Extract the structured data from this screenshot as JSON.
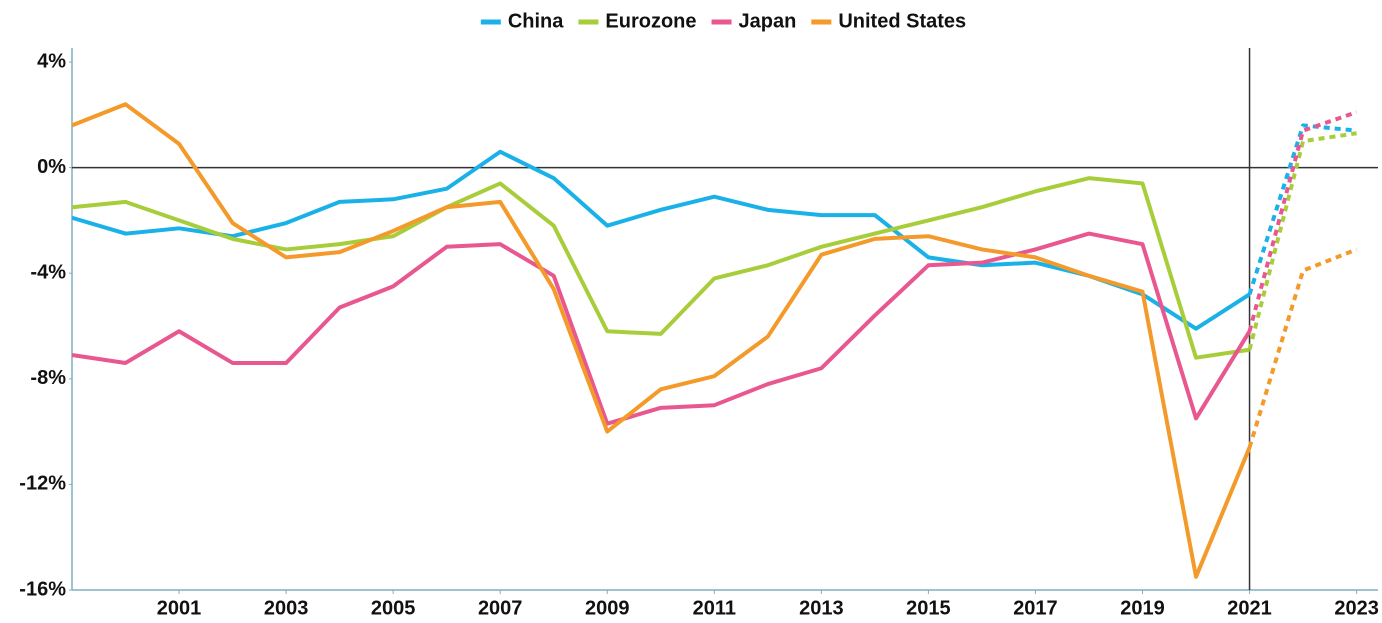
{
  "chart_data": {
    "type": "line",
    "x": [
      1999,
      2000,
      2001,
      2002,
      2003,
      2004,
      2005,
      2006,
      2007,
      2008,
      2009,
      2010,
      2011,
      2012,
      2013,
      2014,
      2015,
      2016,
      2017,
      2018,
      2019,
      2020,
      2021,
      2022,
      2023
    ],
    "forecast_from": 2021,
    "vline": 2021,
    "series": [
      {
        "name": "China",
        "color": "#1ab0e8",
        "values": [
          -1.9,
          -2.5,
          -2.3,
          -2.6,
          -2.1,
          -1.3,
          -1.2,
          -0.8,
          0.6,
          -0.4,
          -2.2,
          -1.6,
          -1.1,
          -1.6,
          -1.8,
          -1.8,
          -3.4,
          -3.7,
          -3.6,
          -4.1,
          -4.8,
          -6.1,
          -4.8,
          1.6,
          1.4
        ]
      },
      {
        "name": "Eurozone",
        "color": "#a8cd3a",
        "values": [
          -1.5,
          -1.3,
          -2.0,
          -2.7,
          -3.1,
          -2.9,
          -2.6,
          -1.5,
          -0.6,
          -2.2,
          -6.2,
          -6.3,
          -4.2,
          -3.7,
          -3.0,
          -2.5,
          -2.0,
          -1.5,
          -0.9,
          -0.4,
          -0.6,
          -7.2,
          -6.9,
          1.0,
          1.3
        ]
      },
      {
        "name": "Japan",
        "color": "#e8578f",
        "values": [
          -7.1,
          -7.4,
          -6.2,
          -7.4,
          -7.4,
          -5.3,
          -4.5,
          -3.0,
          -2.9,
          -4.1,
          -9.7,
          -9.1,
          -9.0,
          -8.2,
          -7.6,
          -5.6,
          -3.7,
          -3.6,
          -3.1,
          -2.5,
          -2.9,
          -9.5,
          -6.2,
          1.4,
          2.1
        ]
      },
      {
        "name": "United States",
        "color": "#f39a2a",
        "values": [
          1.6,
          2.4,
          0.9,
          -2.1,
          -3.4,
          -3.2,
          -2.4,
          -1.5,
          -1.3,
          -4.6,
          -10.0,
          -8.4,
          -7.9,
          -6.4,
          -3.3,
          -2.7,
          -2.6,
          -3.1,
          -3.4,
          -4.1,
          -4.7,
          -15.5,
          -10.6,
          -3.9,
          -3.1
        ]
      }
    ],
    "xlim": [
      1999,
      2023.4
    ],
    "xticks": [
      2001,
      2003,
      2005,
      2007,
      2009,
      2011,
      2013,
      2015,
      2017,
      2019,
      2021,
      2023
    ],
    "ylim": [
      -16,
      4
    ],
    "yticks": [
      {
        "value": 4,
        "label": "4%"
      },
      {
        "value": 0,
        "label": "0%"
      },
      {
        "value": -4,
        "label": "-4%"
      },
      {
        "value": -8,
        "label": "-8%"
      },
      {
        "value": -12,
        "label": "-12%"
      },
      {
        "value": -16,
        "label": "-16%"
      }
    ],
    "legend": "top"
  }
}
